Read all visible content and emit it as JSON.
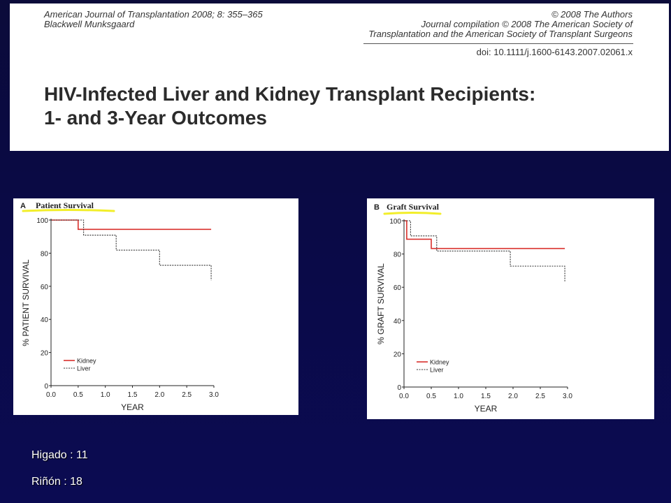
{
  "header": {
    "journal_line1": "American Journal of Transplantation 2008; 8: 355–365",
    "journal_line2": "Blackwell Munksgaard",
    "copyright_line1": "© 2008 The Authors",
    "copyright_line2": "Journal compilation © 2008 The American Society of",
    "copyright_line3": "Transplantation and the American Society of Transplant Surgeons",
    "doi": "doi: 10.1111/j.1600-6143.2007.02061.x",
    "title_line1": "HIV-Infected Liver and Kidney Transplant Recipients:",
    "title_line2": "1- and 3-Year Outcomes"
  },
  "notes": {
    "higado": "Higado : 11",
    "rinon": "Riñón : 18"
  },
  "colors": {
    "kidney": "#d9302c",
    "liver": "#333333",
    "highlight": "#f2ee2a",
    "background": "#0a0a45"
  },
  "chart_data": [
    {
      "type": "line",
      "panel_letter": "A",
      "title": "Patient Survival",
      "xlabel": "YEAR",
      "ylabel": "% PATIENT SURVIVAL",
      "xlim": [
        0,
        3.0
      ],
      "ylim": [
        0,
        100
      ],
      "xticks": [
        "0.0",
        "0.5",
        "1.0",
        "1.5",
        "2.0",
        "2.5",
        "3.0"
      ],
      "yticks": [
        "0",
        "20",
        "40",
        "60",
        "80",
        "100"
      ],
      "legend_position": "bottom-left",
      "series": [
        {
          "name": "Kidney",
          "style": "solid",
          "x": [
            0,
            0.5,
            0.5,
            2.95
          ],
          "y": [
            100,
            100,
            94.4,
            94.4
          ]
        },
        {
          "name": "Liver",
          "style": "dotted",
          "x": [
            0,
            0.6,
            0.6,
            1.2,
            1.2,
            2.0,
            2.0,
            2.95,
            2.95
          ],
          "y": [
            100,
            100,
            90.9,
            90.9,
            81.8,
            81.8,
            72.7,
            72.7,
            63.6
          ]
        }
      ]
    },
    {
      "type": "line",
      "panel_letter": "B",
      "title": "Graft Survival",
      "xlabel": "YEAR",
      "ylabel": "% GRAFT SURVIVAL",
      "xlim": [
        0,
        3.0
      ],
      "ylim": [
        0,
        100
      ],
      "xticks": [
        "0.0",
        "0.5",
        "1.0",
        "1.5",
        "2.0",
        "2.5",
        "3.0"
      ],
      "yticks": [
        "0",
        "20",
        "40",
        "60",
        "80",
        "100"
      ],
      "legend_position": "bottom-left",
      "series": [
        {
          "name": "Kidney",
          "style": "solid",
          "x": [
            0,
            0.05,
            0.05,
            0.5,
            0.5,
            2.95
          ],
          "y": [
            100,
            100,
            88.9,
            88.9,
            83.3,
            83.3
          ]
        },
        {
          "name": "Liver",
          "style": "dotted",
          "x": [
            0,
            0.12,
            0.12,
            0.6,
            0.6,
            1.95,
            1.95,
            2.95,
            2.95
          ],
          "y": [
            100,
            100,
            90.9,
            90.9,
            81.8,
            81.8,
            72.7,
            72.7,
            63.6
          ]
        }
      ]
    }
  ]
}
